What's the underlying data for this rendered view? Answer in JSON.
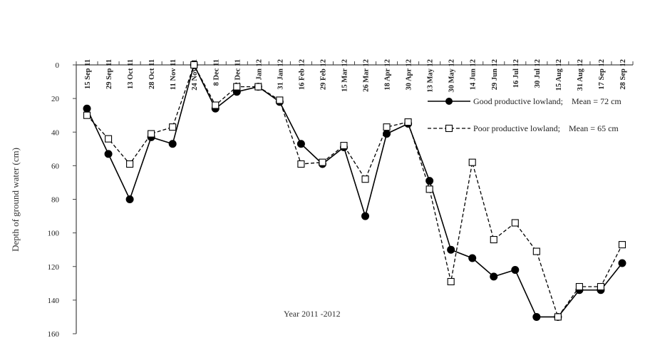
{
  "chart_data": {
    "type": "line",
    "title": "",
    "xlabel": "",
    "ylabel": "Depth of ground water (cm)",
    "annotation": "Year 2011 -2012",
    "y_axis_inverted": true,
    "ylim": [
      0,
      160
    ],
    "yticks": [
      0,
      20,
      40,
      60,
      80,
      100,
      120,
      140,
      160
    ],
    "x_axis_position": "top",
    "grid": false,
    "legend_position": "right",
    "categories": [
      "15 Sep 11",
      "29 Sep 11",
      "13 Oct  11",
      "28 Oct 11",
      "11 Nov 11",
      "24 Nov 11",
      "8 Dec 11",
      "22 Dec 11",
      "11 Jan 12",
      "31 Jan 12",
      "16 Feb 12",
      "29 Feb 12",
      "15 Mar 12",
      "26 Mar 12",
      "18 Apr 12",
      "30 Apr 12",
      "13 May 12",
      "30 May 12",
      "14 Jun 12",
      "29 Jun 12",
      "16 Jul 12",
      "30 Jul 12",
      "15 Aug 12",
      "31 Aug 12",
      "17 Sep 12",
      "28 Sep 12"
    ],
    "series": [
      {
        "name": "Good productive lowland;    Mean = 72 cm",
        "marker": "filled-circle",
        "line_style": "solid",
        "color": "#000000",
        "values": [
          26,
          53,
          80,
          43,
          47,
          0,
          26,
          16,
          13,
          22,
          47,
          59,
          49,
          90,
          41,
          35,
          69,
          110,
          115,
          126,
          122,
          150,
          150,
          134,
          134,
          118
        ]
      },
      {
        "name": "Poor productive lowland;    Mean = 65 cm",
        "marker": "open-square",
        "line_style": "dashed",
        "color": "#000000",
        "values": [
          30,
          44,
          59,
          41,
          37,
          0,
          24,
          13,
          13,
          21,
          59,
          58,
          48,
          68,
          37,
          34,
          74,
          129,
          58,
          104,
          94,
          111,
          150,
          132,
          132,
          107
        ]
      }
    ]
  }
}
